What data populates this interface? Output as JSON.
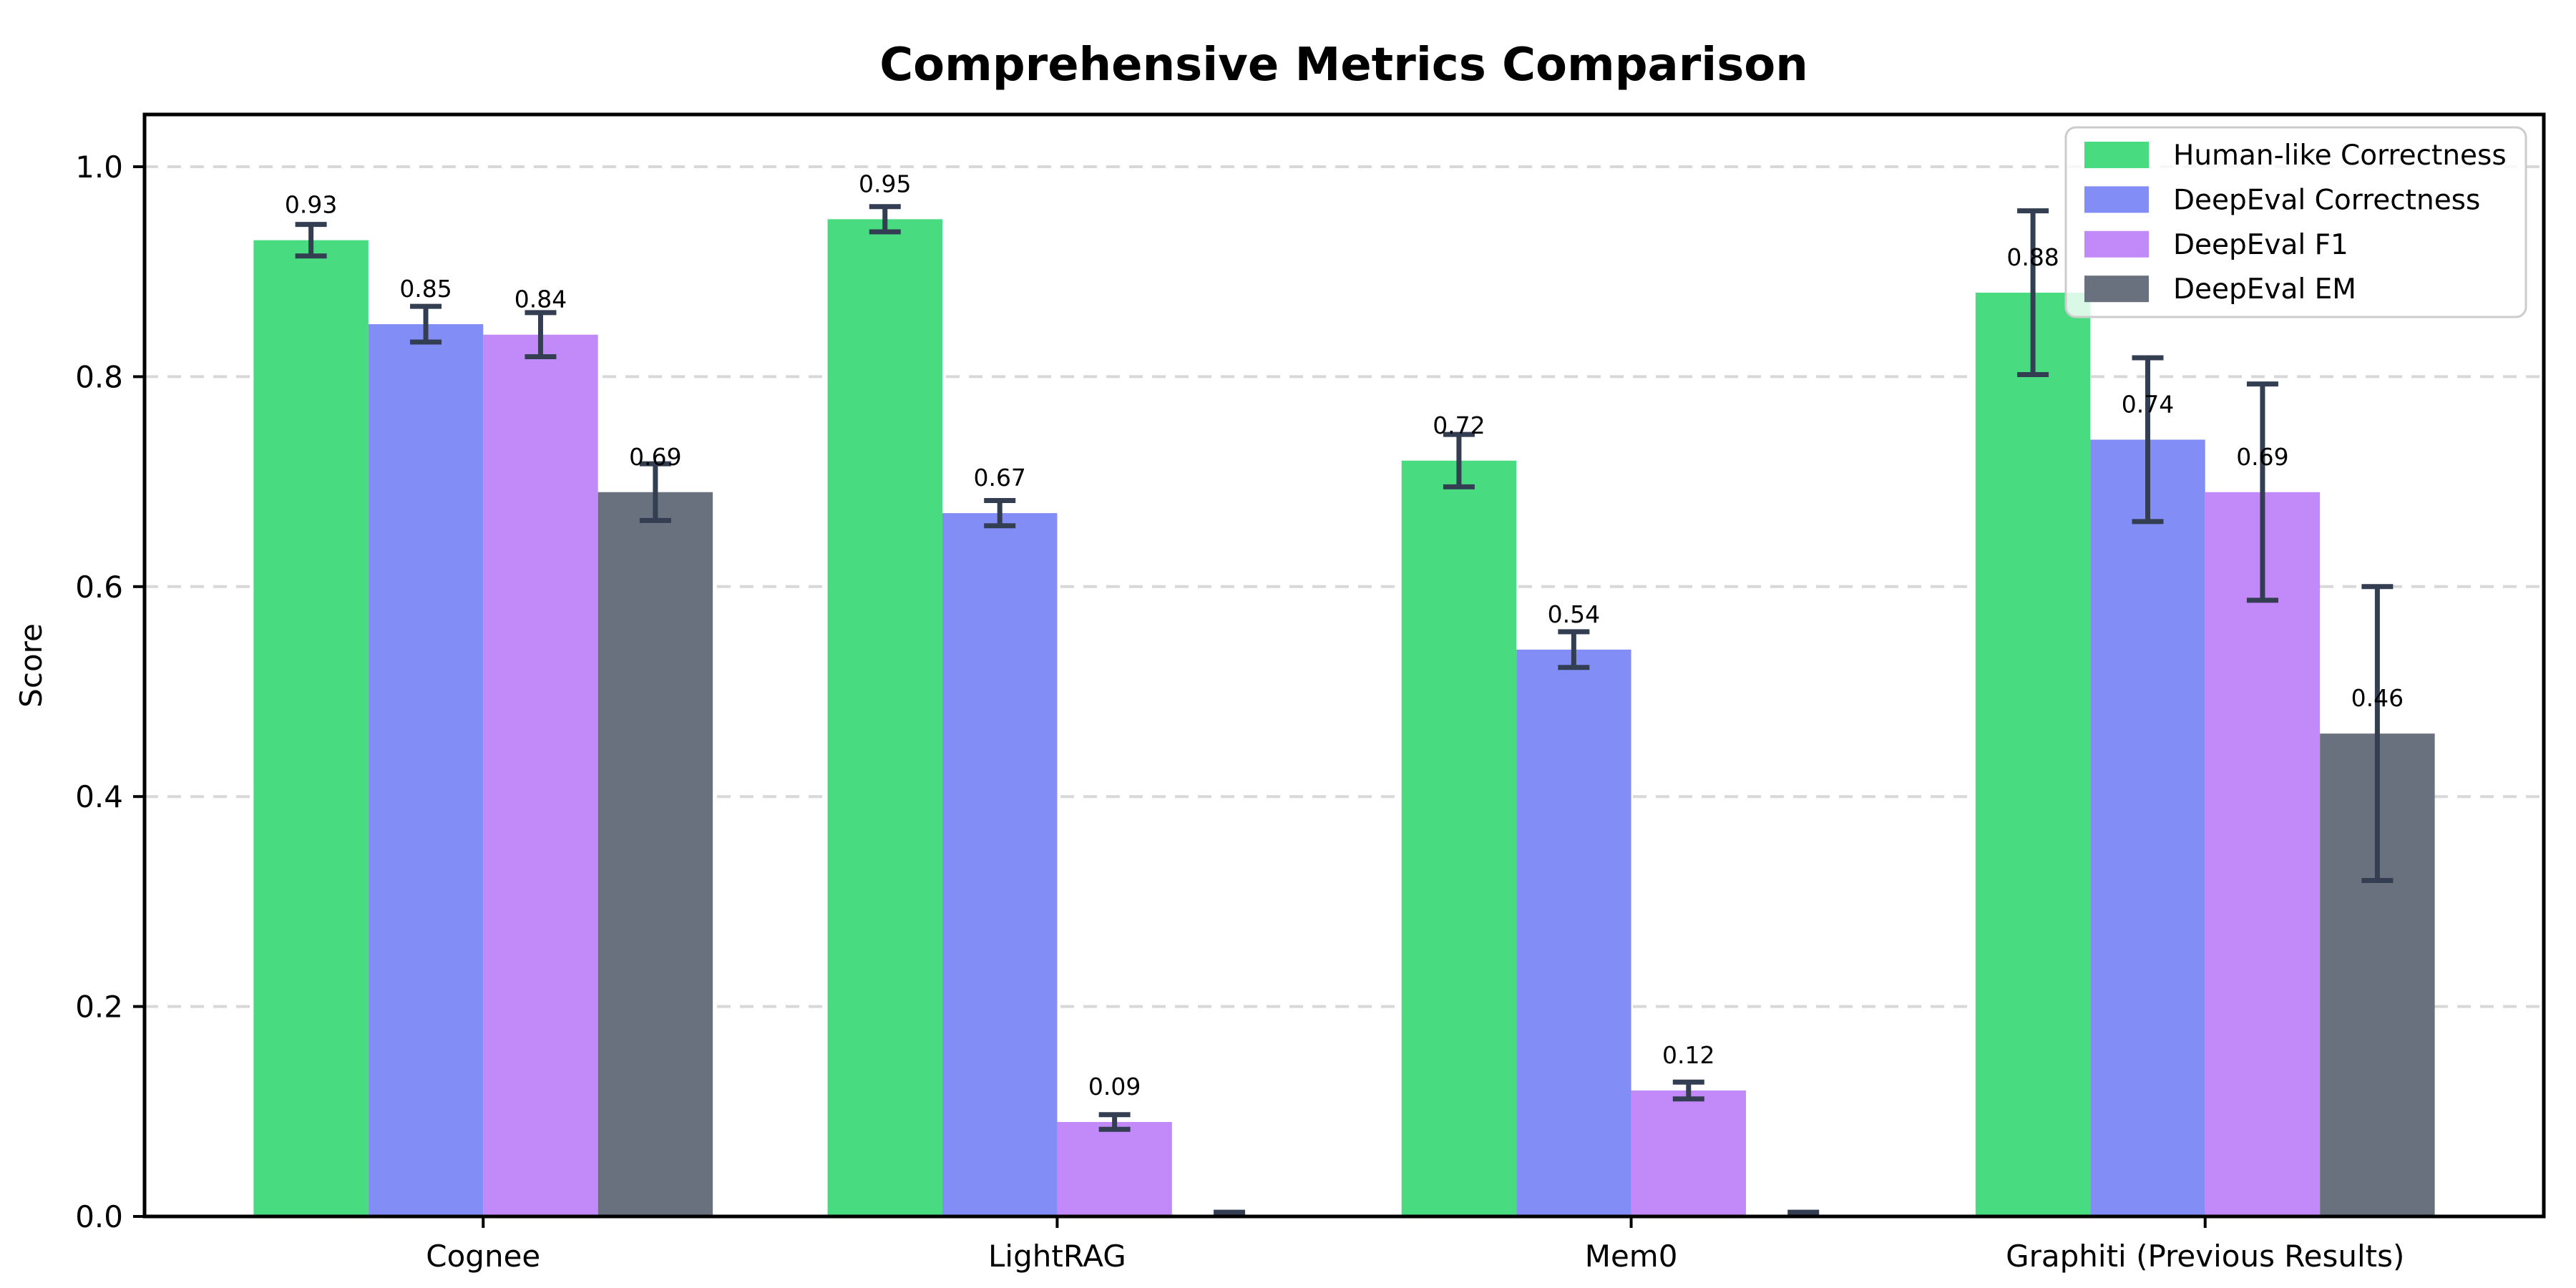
{
  "title": "Comprehensive Metrics Comparison",
  "chart_data": {
    "type": "bar",
    "title": "Comprehensive Metrics Comparison",
    "xlabel": "",
    "ylabel": "Score",
    "ylim": [
      0,
      1.05
    ],
    "ytick_labels": [
      "0.0",
      "0.2",
      "0.4",
      "0.6",
      "0.8",
      "1.0"
    ],
    "yticks": [
      0.0,
      0.2,
      0.4,
      0.6,
      0.8,
      1.0
    ],
    "grid": "horizontal-dashed",
    "legend_position": "upper right",
    "categories": [
      "Cognee",
      "LightRAG",
      "Mem0",
      "Graphiti (Previous Results)"
    ],
    "series": [
      {
        "name": "Human-like Correctness",
        "color": "#48db80",
        "values": [
          0.93,
          0.95,
          0.72,
          0.88
        ],
        "errors": [
          0.015,
          0.012,
          0.025,
          0.078
        ],
        "labels": [
          "0.93",
          "0.95",
          "0.72",
          "0.88"
        ]
      },
      {
        "name": "DeepEval Correctness",
        "color": "#828df5",
        "values": [
          0.85,
          0.67,
          0.54,
          0.74
        ],
        "errors": [
          0.017,
          0.012,
          0.017,
          0.078
        ],
        "labels": [
          "0.85",
          "0.67",
          "0.54",
          "0.74"
        ]
      },
      {
        "name": "DeepEval F1",
        "color": "#c289f8",
        "values": [
          0.84,
          0.09,
          0.12,
          0.69
        ],
        "errors": [
          0.021,
          0.007,
          0.008,
          0.103
        ],
        "labels": [
          "0.84",
          "0.09",
          "0.12",
          "0.69"
        ]
      },
      {
        "name": "DeepEval EM",
        "color": "#69717f",
        "values": [
          0.69,
          0.0,
          0.0,
          0.46
        ],
        "errors": [
          0.027,
          0.004,
          0.004,
          0.14
        ],
        "labels": [
          "0.69",
          "",
          "",
          "0.46"
        ]
      }
    ],
    "colors": {
      "error_bar": "#343e52",
      "gridline": "#d8d8d8",
      "spine": "#000000",
      "legend_border": "#cccccc"
    }
  }
}
